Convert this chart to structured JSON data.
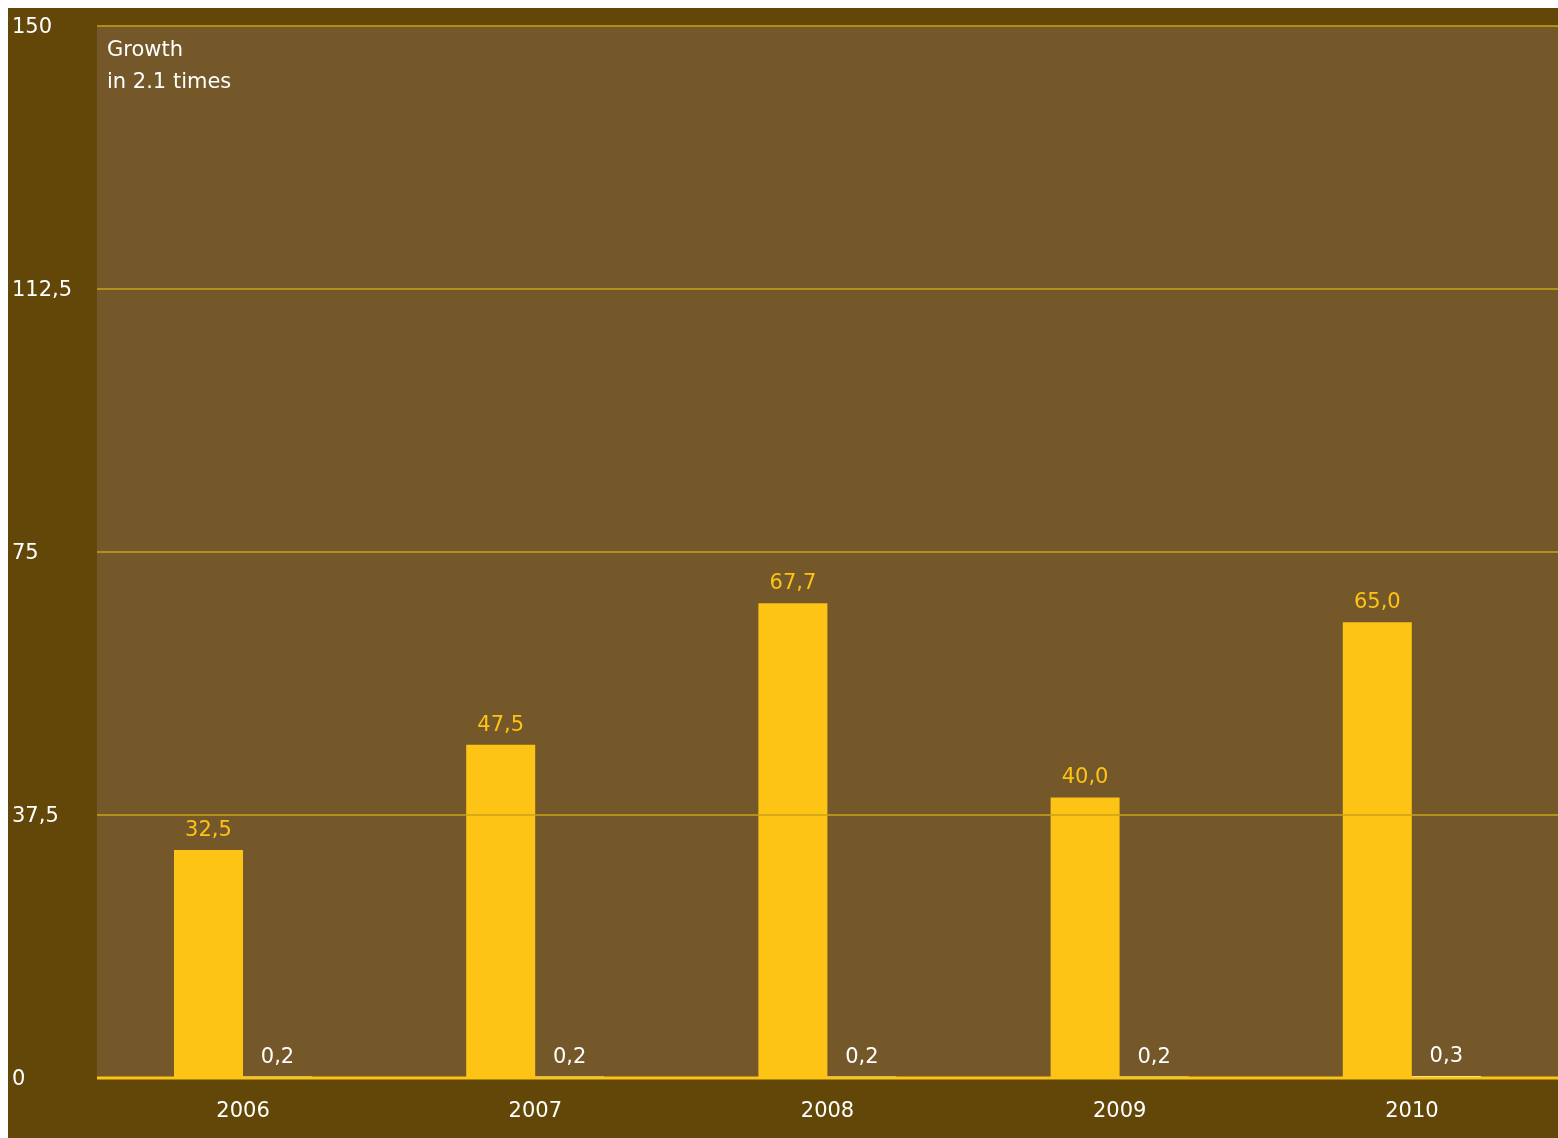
{
  "chart_data": {
    "type": "bar",
    "categories": [
      "2006",
      "2007",
      "2008",
      "2009",
      "2010"
    ],
    "series": [
      {
        "color": "#fdc315",
        "values": [
          32.5,
          47.5,
          67.7,
          40.0,
          65.0
        ],
        "value_labels": [
          "32,5",
          "47,5",
          "67,7",
          "40,0",
          "65,0"
        ]
      },
      {
        "color": "#ffffff",
        "values": [
          0.2,
          0.2,
          0.2,
          0.2,
          0.3
        ],
        "value_labels": [
          "0,2",
          "0,2",
          "0,2",
          "0,2",
          "0,3"
        ]
      }
    ],
    "ylim": [
      0,
      150
    ],
    "yticks": [
      0,
      {
        "value": 37.5,
        "label": "37,5"
      },
      75,
      {
        "value": 112.5,
        "label": "112,5"
      },
      150
    ],
    "grid": "y",
    "legend": false,
    "bands": [
      {
        "axis": "x",
        "from": "2006",
        "to": "2010",
        "label": "Growth in 2.1 times",
        "color": "#75582a"
      }
    ]
  }
}
